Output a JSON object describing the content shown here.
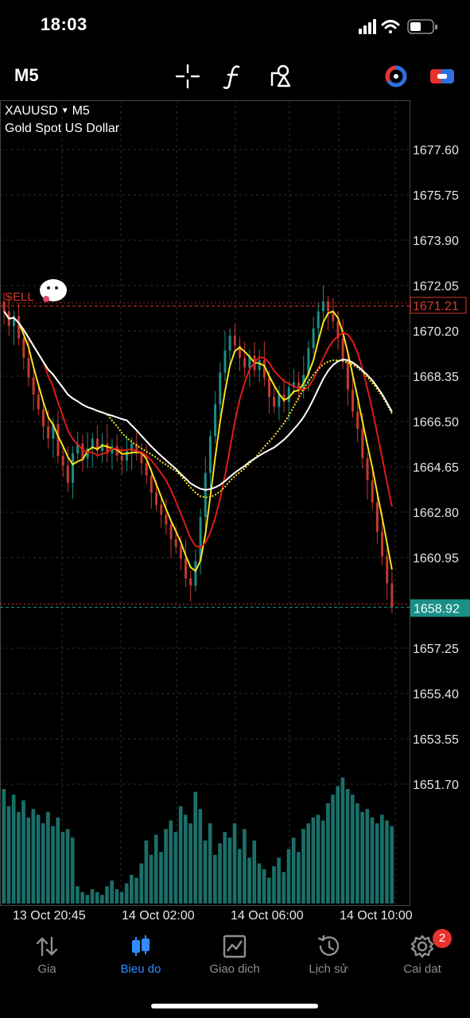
{
  "status": {
    "time": "18:03"
  },
  "toolbar": {
    "timeframe": "M5",
    "tools": [
      "crosshair-icon",
      "function-icon",
      "drawing-objects-icon",
      "account-icon",
      "toggle-icon"
    ]
  },
  "symbol": {
    "name": "XAUUSD",
    "timeframe": "M5",
    "description": "Gold Spot US Dollar"
  },
  "chart_data": {
    "type": "candlestick",
    "price_axis_labels": [
      "1677.60",
      "1675.75",
      "1673.90",
      "1672.05",
      "1670.20",
      "1668.35",
      "1666.50",
      "1664.65",
      "1662.80",
      "1660.95",
      "1657.25",
      "1655.40",
      "1653.55",
      "1651.70"
    ],
    "price_axis_values": [
      1677.6,
      1675.75,
      1673.9,
      1672.05,
      1670.2,
      1668.35,
      1666.5,
      1664.65,
      1662.8,
      1660.95,
      1657.25,
      1655.4,
      1653.55,
      1651.7
    ],
    "time_axis_labels": [
      "13 Oct 20:45",
      "14 Oct 02:00",
      "14 Oct 06:00",
      "14 Oct 10:00"
    ],
    "ylim": [
      1650.0,
      1679.0
    ],
    "sell_level": {
      "label": "SELL",
      "price": 1671.21,
      "price_label": "1671.21",
      "color": "#d33a2c"
    },
    "bid_level": {
      "price": 1658.92,
      "price_label": "1658.92",
      "color": "#1a8f86"
    },
    "close": [
      1671.0,
      1670.4,
      1670.8,
      1669.9,
      1669.1,
      1668.3,
      1667.6,
      1667.0,
      1666.3,
      1665.8,
      1666.4,
      1665.1,
      1664.7,
      1664.0,
      1665.2,
      1665.6,
      1665.0,
      1665.4,
      1665.8,
      1665.3,
      1665.6,
      1665.2,
      1665.5,
      1665.1,
      1664.9,
      1665.3,
      1665.6,
      1665.2,
      1664.8,
      1664.3,
      1663.6,
      1663.1,
      1662.7,
      1662.3,
      1661.7,
      1661.4,
      1660.9,
      1660.1,
      1659.8,
      1660.8,
      1662.6,
      1664.4,
      1665.9,
      1667.2,
      1668.5,
      1669.4,
      1670.0,
      1669.6,
      1669.1,
      1668.7,
      1669.2,
      1668.6,
      1669.0,
      1668.3,
      1667.5,
      1667.1,
      1667.6,
      1667.3,
      1667.9,
      1668.1,
      1667.8,
      1668.4,
      1669.5,
      1670.3,
      1671.0,
      1671.4,
      1671.0,
      1670.6,
      1669.9,
      1669.0,
      1667.8,
      1666.9,
      1666.2,
      1665.0,
      1664.1,
      1663.2,
      1662.0,
      1661.0,
      1659.9,
      1658.92
    ],
    "volume": [
      4,
      3.4,
      3.8,
      3.2,
      3.6,
      3,
      3.3,
      3.1,
      2.8,
      3.2,
      2.7,
      3,
      2.5,
      2.6,
      2.3,
      0.6,
      0.4,
      0.3,
      0.5,
      0.4,
      0.3,
      0.6,
      0.8,
      0.5,
      0.4,
      0.7,
      1,
      0.9,
      1.4,
      2.2,
      1.7,
      2.4,
      1.8,
      2.6,
      2.9,
      2.5,
      3.4,
      3.1,
      2.8,
      3.9,
      3.3,
      2.2,
      2.8,
      1.7,
      2.1,
      2.5,
      2.3,
      2.8,
      1.9,
      2.6,
      1.6,
      2.2,
      1.4,
      1.2,
      0.9,
      1.3,
      1.6,
      1.1,
      1.9,
      2.3,
      1.8,
      2.6,
      2.8,
      3,
      3.1,
      2.9,
      3.5,
      3.8,
      4.1,
      4.4,
      4.0,
      3.8,
      3.5,
      3.2,
      3.3,
      3.0,
      2.8,
      3.1,
      2.9,
      2.7
    ]
  },
  "tabs": [
    {
      "label": "Gia",
      "icon": "arrows-updown-icon",
      "active": false
    },
    {
      "label": "Bieu do",
      "icon": "candlestick-icon",
      "active": true
    },
    {
      "label": "Giao dich",
      "icon": "trade-chart-icon",
      "active": false
    },
    {
      "label": "Lịch sử",
      "icon": "history-icon",
      "active": false
    },
    {
      "label": "Cai dat",
      "icon": "gear-icon",
      "active": false,
      "badge": "2"
    }
  ]
}
